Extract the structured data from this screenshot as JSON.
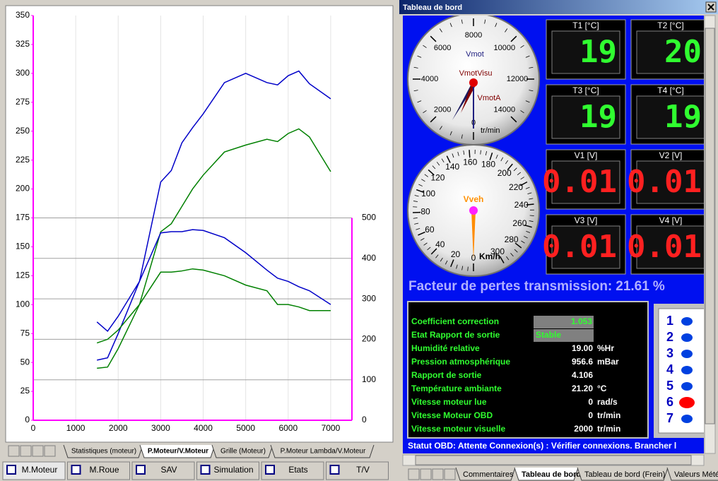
{
  "chart_data": {
    "type": "line",
    "x": [
      1500,
      1750,
      2000,
      2500,
      3000,
      3250,
      3500,
      3750,
      4000,
      4500,
      5000,
      5500,
      5750,
      6000,
      6250,
      6500,
      7000
    ],
    "xlim": [
      0,
      7500
    ],
    "xticks": [
      0,
      1000,
      2000,
      3000,
      4000,
      5000,
      6000,
      7000
    ],
    "ylim": [
      0,
      350
    ],
    "yticks": [
      0,
      25,
      50,
      75,
      100,
      125,
      150,
      175,
      200,
      225,
      250,
      275,
      300,
      325,
      350
    ],
    "y2lim": [
      0,
      1000
    ],
    "y2ticks": [
      0,
      100,
      200,
      300,
      400,
      500
    ],
    "axis_color": "#ff00ff",
    "grid": true,
    "series": [
      {
        "color": "#0000c8",
        "values": [
          52,
          54,
          75,
          120,
          206,
          216,
          240,
          253,
          265,
          292,
          300,
          292,
          290,
          298,
          302,
          291,
          278
        ]
      },
      {
        "color": "#008000",
        "values": [
          45,
          46,
          62,
          100,
          163,
          170,
          185,
          200,
          212,
          232,
          238,
          243,
          241,
          248,
          252,
          245,
          215
        ]
      },
      {
        "color": "#0000c8",
        "axis": "y2",
        "values": [
          243,
          220,
          257,
          343,
          463,
          466,
          466,
          471,
          469,
          451,
          414,
          371,
          351,
          343,
          330,
          320,
          286
        ]
      },
      {
        "color": "#008000",
        "axis": "y2",
        "values": [
          191,
          200,
          223,
          286,
          366,
          366,
          369,
          374,
          371,
          357,
          334,
          320,
          286,
          286,
          280,
          271,
          271
        ]
      }
    ]
  },
  "chart_tabs": {
    "items": [
      "Statistiques (moteur)",
      "P.Moteur/V.Moteur",
      "Grille (Moteur)",
      "P.Moteur Lambda/V.Moteur"
    ],
    "selected": 1
  },
  "bottom_tabs": {
    "items": [
      "M.Moteur",
      "M.Roue",
      "SAV",
      "Simulation",
      "Etats",
      "T/V"
    ],
    "selected": 0
  },
  "dashboard": {
    "title": "Tableau de bord",
    "rpm_gauge": {
      "labels": [
        0,
        2000,
        4000,
        6000,
        8000,
        10000,
        12000,
        14000
      ],
      "name": "Vmot",
      "needles": [
        "VmotVisu",
        "VmotA"
      ],
      "unit": "tr/min"
    },
    "speed_gauge": {
      "labels": [
        0,
        20,
        40,
        60,
        80,
        100,
        120,
        140,
        160,
        180,
        200,
        220,
        240,
        260,
        280,
        300
      ],
      "name": "Vveh",
      "unit": "Km/h"
    },
    "displays": [
      {
        "label": "T1 [°C]",
        "value": 19,
        "color": "#30ff30"
      },
      {
        "label": "T2 [°C]",
        "value": 20,
        "color": "#30ff30"
      },
      {
        "label": "T3 [°C]",
        "value": 19,
        "color": "#30ff30"
      },
      {
        "label": "T4 [°C]",
        "value": 19,
        "color": "#30ff30"
      },
      {
        "label": "V1 [V]",
        "value": 0.01,
        "color": "#ff2020"
      },
      {
        "label": "V2 [V]",
        "value": 0.01,
        "color": "#ff2020"
      },
      {
        "label": "V3 [V]",
        "value": 0.01,
        "color": "#ff2020"
      },
      {
        "label": "V4 [V]",
        "value": 0.01,
        "color": "#ff2020"
      }
    ],
    "loss_factor": {
      "label": "Facteur de pertes transmission:",
      "value": 21.61,
      "unit": "%"
    },
    "parameters": [
      {
        "label": "Coefficient correction",
        "value": 1.053
      },
      {
        "label": "Etat Rapport de sortie",
        "value": "Stable"
      },
      {
        "label": "Humidité relative",
        "value": "19.00",
        "unit": "%Hr"
      },
      {
        "label": "Pression atmosphérique",
        "value": 956.6,
        "unit": "mBar"
      },
      {
        "label": "Rapport de sortie",
        "value": 4.106
      },
      {
        "label": "Température ambiante",
        "value": "21.20",
        "unit": "°C"
      },
      {
        "label": "Vitesse moteur lue",
        "value": 0,
        "unit": "rad/s"
      },
      {
        "label": "Vitesse Moteur OBD",
        "value": 0,
        "unit": "tr/min"
      },
      {
        "label": "Vitesse moteur visuelle",
        "value": 2000,
        "unit": "tr/min"
      }
    ],
    "buttons": [
      1,
      2,
      3,
      4,
      5,
      6,
      7
    ],
    "active_button": 6,
    "status": "Statut OBD: Attente Connexion(s) : Vérifier connexions. Brancher l",
    "tabs": {
      "items": [
        "Commentaires",
        "Tableau de bord",
        "Tableau de bord (Frein)",
        "Valeurs Météo"
      ],
      "selected": 1
    }
  }
}
